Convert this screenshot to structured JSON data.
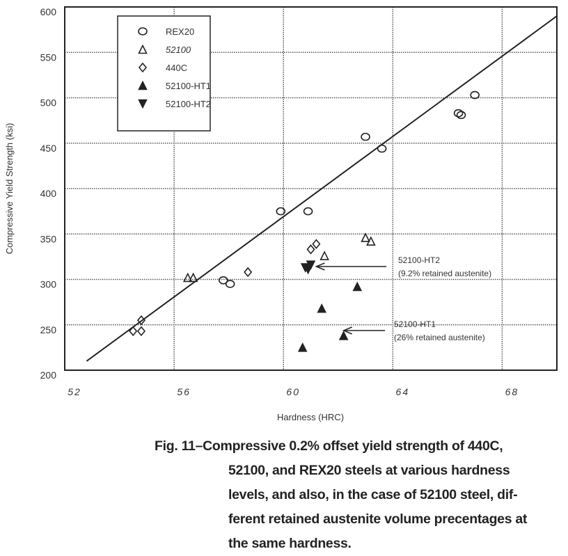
{
  "chart_data": {
    "type": "scatter",
    "xlabel": "Hardness (HRC)",
    "ylabel": "Compressive Yield Strength (ksi)",
    "xlim": [
      52,
      70
    ],
    "ylim": [
      200,
      600
    ],
    "xticks": [
      52,
      56,
      60,
      64,
      68
    ],
    "yticks": [
      200,
      250,
      300,
      350,
      400,
      450,
      500,
      550,
      600
    ],
    "grid": true,
    "legend_position": "top-left",
    "series": [
      {
        "name": "REX20",
        "marker": "circle",
        "points": [
          [
            57.8,
            299
          ],
          [
            58.05,
            295
          ],
          [
            59.9,
            375
          ],
          [
            60.9,
            375
          ],
          [
            63.0,
            457
          ],
          [
            63.6,
            444
          ],
          [
            66.4,
            483
          ],
          [
            66.5,
            481
          ],
          [
            67.0,
            503
          ]
        ]
      },
      {
        "name": "52100",
        "marker": "triangle-open",
        "points": [
          [
            56.5,
            302
          ],
          [
            56.7,
            302
          ],
          [
            61.5,
            326
          ],
          [
            63.0,
            346
          ],
          [
            63.2,
            342
          ]
        ]
      },
      {
        "name": "440C",
        "marker": "diamond-open",
        "points": [
          [
            54.5,
            243
          ],
          [
            54.8,
            243
          ],
          [
            54.8,
            255
          ],
          [
            58.7,
            308
          ],
          [
            61.0,
            333
          ],
          [
            61.2,
            339
          ]
        ]
      },
      {
        "name": "52100-HT1",
        "marker": "triangle-filled",
        "points": [
          [
            60.7,
            225
          ],
          [
            61.4,
            268
          ],
          [
            62.2,
            238
          ],
          [
            62.7,
            292
          ]
        ]
      },
      {
        "name": "52100-HT2",
        "marker": "triangle-down-filled",
        "points": [
          [
            60.8,
            313
          ],
          [
            61.0,
            316
          ],
          [
            60.9,
            311
          ]
        ]
      }
    ],
    "fit_line": {
      "x": [
        52.8,
        70
      ],
      "y": [
        210,
        590
      ]
    },
    "annotations": [
      {
        "lines": [
          "52100-HT2",
          "(9.2% retained austenite)"
        ],
        "target": [
          61.1,
          313
        ]
      },
      {
        "lines": [
          "52100-HT1",
          "(26% retained austenite)"
        ],
        "target": [
          62.1,
          244
        ]
      }
    ]
  },
  "caption": {
    "lines": [
      "Fig. 11–Compressive 0.2% offset yield strength of 440C,",
      "52100, and REX20 steels at various hardness",
      "levels, and also, in the case of 52100 steel, dif-",
      "ferent retained austenite volume precentages at",
      "the same hardness."
    ]
  }
}
